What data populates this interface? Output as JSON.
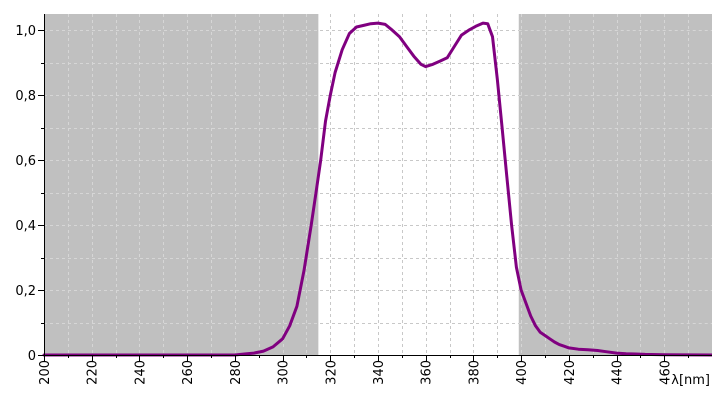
{
  "chart_data": {
    "type": "line",
    "title": "",
    "xlabel": "λ[nm]",
    "ylabel": "",
    "xlim": [
      200,
      480
    ],
    "ylim": [
      0,
      1.05
    ],
    "x_ticks": [
      200,
      220,
      240,
      260,
      280,
      300,
      320,
      340,
      360,
      380,
      400,
      420,
      440,
      460
    ],
    "x_tick_labels": [
      "200",
      "220",
      "240",
      "260",
      "280",
      "300",
      "320",
      "340",
      "360",
      "380",
      "400",
      "420",
      "440",
      "460"
    ],
    "x_minor_step": 10,
    "y_ticks": [
      0,
      0.2,
      0.4,
      0.6,
      0.8,
      1.0
    ],
    "y_tick_labels": [
      "0",
      "0,2",
      "0,4",
      "0,6",
      "0,8",
      "1,0"
    ],
    "y_minor_step": 0.1,
    "grid": true,
    "legend": "none",
    "shaded_regions": [
      {
        "x_start": 200,
        "x_end": 315
      },
      {
        "x_start": 399,
        "x_end": 480
      }
    ],
    "series": [
      {
        "x": [
          200,
          280,
          284,
          288,
          292,
          296,
          300,
          303,
          306,
          309,
          312,
          314,
          316,
          318,
          320,
          322,
          325,
          328,
          331,
          334,
          337,
          340,
          343,
          346,
          349,
          352,
          355,
          358,
          360,
          363,
          366,
          369,
          372,
          375,
          378,
          381,
          384,
          386,
          388,
          390,
          392,
          394,
          396,
          398,
          400,
          402,
          404,
          406,
          408,
          410,
          412,
          414,
          416,
          418,
          420,
          424,
          428,
          432,
          436,
          440,
          444,
          448,
          452,
          460,
          480
        ],
        "y": [
          0.0,
          0.0,
          0.003,
          0.006,
          0.012,
          0.025,
          0.05,
          0.09,
          0.15,
          0.26,
          0.4,
          0.5,
          0.6,
          0.72,
          0.8,
          0.87,
          0.94,
          0.99,
          1.01,
          1.015,
          1.02,
          1.022,
          1.018,
          1.0,
          0.98,
          0.95,
          0.92,
          0.895,
          0.888,
          0.895,
          0.905,
          0.915,
          0.95,
          0.985,
          1.0,
          1.012,
          1.022,
          1.02,
          0.98,
          0.85,
          0.7,
          0.55,
          0.4,
          0.27,
          0.2,
          0.16,
          0.12,
          0.09,
          0.07,
          0.06,
          0.05,
          0.04,
          0.032,
          0.027,
          0.022,
          0.018,
          0.016,
          0.014,
          0.01,
          0.006,
          0.004,
          0.003,
          0.002,
          0.001,
          0.0
        ]
      }
    ],
    "colors": {
      "curve": "#800080",
      "shade": "#c0c0c0",
      "plot_background": "#ffffff",
      "grid": "#c8c8c8",
      "axis": "#000000",
      "text": "#000000"
    }
  }
}
